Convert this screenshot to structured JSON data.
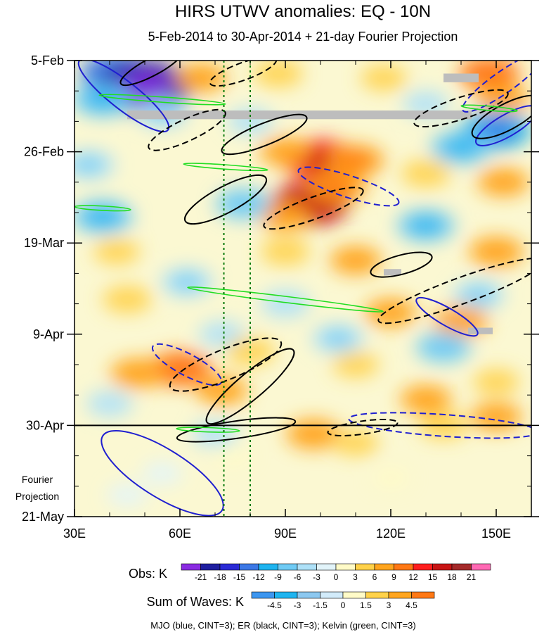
{
  "chart_data": {
    "type": "heatmap",
    "title": "HIRS UTWV anomalies: EQ - 10N",
    "subtitle": "5-Feb-2014 to 30-Apr-2014 + 21-day Fourier Projection",
    "x_axis": {
      "range": [
        30,
        160
      ],
      "units": "longitude (deg E)",
      "ticks": [
        {
          "value": 30,
          "label": "30E"
        },
        {
          "value": 60,
          "label": "60E"
        },
        {
          "value": 90,
          "label": "90E"
        },
        {
          "value": 120,
          "label": "120E"
        },
        {
          "value": 150,
          "label": "150E"
        }
      ],
      "minor_ticks": [
        40,
        50,
        70,
        80,
        100,
        110,
        130,
        140,
        160
      ]
    },
    "y_axis": {
      "range_days": [
        0,
        105
      ],
      "units": "days since 5-Feb-2014 (downward)",
      "ticks": [
        {
          "day": 0,
          "label": "5-Feb"
        },
        {
          "day": 21,
          "label": "26-Feb"
        },
        {
          "day": 42,
          "label": "19-Mar"
        },
        {
          "day": 63,
          "label": "9-Apr"
        },
        {
          "day": 84,
          "label": "30-Apr"
        },
        {
          "day": 105,
          "label": "21-May"
        }
      ],
      "minor_tick_interval_days": 7
    },
    "observation_end_day": 84,
    "projection_label_line1": "Fourier",
    "projection_label_line2": "Projection",
    "reference_longitudes": [
      72.5,
      80
    ],
    "obs_legend": {
      "label": "Obs: K",
      "levels": [
        "-21",
        "-18",
        "-15",
        "-12",
        "-9",
        "-6",
        "-3",
        "0",
        "3",
        "6",
        "9",
        "12",
        "15",
        "18",
        "21"
      ],
      "colors": [
        "#8a2be2",
        "#1e1ea0",
        "#2a2ad6",
        "#3c78e6",
        "#1eb4f0",
        "#6fcbf5",
        "#aee1f8",
        "#e2f4fa",
        "#fffbc8",
        "#ffd24a",
        "#ffa51e",
        "#ff7814",
        "#ff1e1e",
        "#c81414",
        "#a52a2a",
        "#ff69b4"
      ]
    },
    "waves_legend": {
      "label": "Sum of Waves: K",
      "levels": [
        "-4.5",
        "-3",
        "-1.5",
        "0",
        "1.5",
        "3",
        "4.5"
      ],
      "colors": [
        "#3c96f0",
        "#1eb4f0",
        "#8cc8f0",
        "#d2ebfa",
        "#fffbc8",
        "#ffd24a",
        "#ffa51e",
        "#ff7814"
      ]
    },
    "contour_legend": "MJO (blue, CINT=3); ER (black, CINT=3); Kelvin (green, CINT=3)",
    "anomaly_cells": [
      {
        "lon": 42,
        "day": 3,
        "v": -13
      },
      {
        "lon": 50,
        "day": 6,
        "v": -20
      },
      {
        "lon": 38,
        "day": 9,
        "v": -9
      },
      {
        "lon": 55,
        "day": 12,
        "v": -6
      },
      {
        "lon": 148,
        "day": 3,
        "v": 9
      },
      {
        "lon": 152,
        "day": 9,
        "v": 6
      },
      {
        "lon": 66,
        "day": 4,
        "v": 6
      },
      {
        "lon": 88,
        "day": 3,
        "v": 5
      },
      {
        "lon": 118,
        "day": 4,
        "v": 4
      },
      {
        "lon": 130,
        "day": 10,
        "v": -4
      },
      {
        "lon": 150,
        "day": 16,
        "v": -12
      },
      {
        "lon": 140,
        "day": 20,
        "v": -9
      },
      {
        "lon": 100,
        "day": 23,
        "v": 14
      },
      {
        "lon": 110,
        "day": 23,
        "v": 8
      },
      {
        "lon": 90,
        "day": 21,
        "v": 6
      },
      {
        "lon": 97,
        "day": 33,
        "v": 15
      },
      {
        "lon": 105,
        "day": 29,
        "v": 8
      },
      {
        "lon": 90,
        "day": 36,
        "v": 6
      },
      {
        "lon": 80,
        "day": 14,
        "v": -4
      },
      {
        "lon": 78,
        "day": 33,
        "v": -7
      },
      {
        "lon": 34,
        "day": 24,
        "v": -6
      },
      {
        "lon": 38,
        "day": 36,
        "v": -9
      },
      {
        "lon": 130,
        "day": 26,
        "v": 5
      },
      {
        "lon": 152,
        "day": 28,
        "v": 6
      },
      {
        "lon": 130,
        "day": 38,
        "v": -8
      },
      {
        "lon": 150,
        "day": 44,
        "v": 7
      },
      {
        "lon": 42,
        "day": 44,
        "v": 4
      },
      {
        "lon": 90,
        "day": 44,
        "v": 5
      },
      {
        "lon": 110,
        "day": 46,
        "v": 6
      },
      {
        "lon": 62,
        "day": 51,
        "v": -6
      },
      {
        "lon": 90,
        "day": 56,
        "v": -5
      },
      {
        "lon": 45,
        "day": 55,
        "v": 5
      },
      {
        "lon": 120,
        "day": 58,
        "v": 6
      },
      {
        "lon": 145,
        "day": 54,
        "v": -6
      },
      {
        "lon": 140,
        "day": 60,
        "v": 7
      },
      {
        "lon": 135,
        "day": 66,
        "v": -7
      },
      {
        "lon": 105,
        "day": 64,
        "v": -6
      },
      {
        "lon": 72,
        "day": 63,
        "v": -4
      },
      {
        "lon": 60,
        "day": 71,
        "v": 10
      },
      {
        "lon": 48,
        "day": 72,
        "v": 7
      },
      {
        "lon": 72,
        "day": 76,
        "v": 6
      },
      {
        "lon": 80,
        "day": 67,
        "v": 5
      },
      {
        "lon": 110,
        "day": 70,
        "v": 4
      },
      {
        "lon": 130,
        "day": 78,
        "v": 6
      },
      {
        "lon": 150,
        "day": 74,
        "v": 4
      },
      {
        "lon": 40,
        "day": 79,
        "v": -4
      },
      {
        "lon": 98,
        "day": 86,
        "v": 7
      },
      {
        "lon": 110,
        "day": 88,
        "v": 4
      },
      {
        "lon": 135,
        "day": 84,
        "v": 5
      },
      {
        "lon": 150,
        "day": 82,
        "v": 6
      },
      {
        "lon": 55,
        "day": 95,
        "v": -2
      },
      {
        "lon": 45,
        "day": 100,
        "v": -2
      },
      {
        "lon": 75,
        "day": 91,
        "v": 1
      },
      {
        "lon": 120,
        "day": 96,
        "v": 1
      },
      {
        "lon": 70,
        "day": 86,
        "v": -4
      }
    ],
    "missing_data": [
      {
        "lon_start": 45,
        "lon_end": 143,
        "day_start": 11.5,
        "day_end": 13.5
      },
      {
        "lon_start": 135,
        "lon_end": 145,
        "day_start": 3,
        "day_end": 5
      },
      {
        "lon_start": 118,
        "lon_end": 123,
        "day_start": 48,
        "day_end": 49.5
      },
      {
        "lon_start": 142,
        "lon_end": 149,
        "day_start": 61.5,
        "day_end": 63
      }
    ],
    "contours": [
      {
        "wave": "MJO",
        "style": "solid",
        "lon": 44,
        "day": 8,
        "rx": 16,
        "ry": 3.2,
        "rot": 38
      },
      {
        "wave": "MJO",
        "style": "solid",
        "lon": 55,
        "day": 95,
        "rx": 20,
        "ry": 5.5,
        "rot": 32
      },
      {
        "wave": "MJO",
        "style": "dashed",
        "lon": 152,
        "day": 5,
        "rx": 14,
        "ry": 2.5,
        "rot": -35
      },
      {
        "wave": "MJO",
        "style": "dashed",
        "lon": 108,
        "day": 29,
        "rx": 15,
        "ry": 2.5,
        "rot": 18
      },
      {
        "wave": "MJO",
        "style": "dashed",
        "lon": 62,
        "day": 70,
        "rx": 11,
        "ry": 2.5,
        "rot": 28
      },
      {
        "wave": "MJO",
        "style": "dashed",
        "lon": 135,
        "day": 84,
        "rx": 27,
        "ry": 2.5,
        "rot": 4
      },
      {
        "wave": "MJO",
        "style": "solid",
        "lon": 136,
        "day": 59,
        "rx": 10,
        "ry": 2,
        "rot": 30
      },
      {
        "wave": "MJO",
        "style": "solid",
        "lon": 153,
        "day": 15,
        "rx": 10,
        "ry": 2.5,
        "rot": -30
      },
      {
        "wave": "ER",
        "style": "solid",
        "lon": 52,
        "day": 1.5,
        "rx": 10,
        "ry": 2,
        "rot": -28
      },
      {
        "wave": "ER",
        "style": "dashed",
        "lon": 78,
        "day": 2.5,
        "rx": 10,
        "ry": 2,
        "rot": -20
      },
      {
        "wave": "ER",
        "style": "dashed",
        "lon": 62,
        "day": 16,
        "rx": 12,
        "ry": 2.5,
        "rot": -25
      },
      {
        "wave": "ER",
        "style": "solid",
        "lon": 84,
        "day": 17,
        "rx": 13,
        "ry": 2.5,
        "rot": -22
      },
      {
        "wave": "ER",
        "style": "dashed",
        "lon": 140,
        "day": 11,
        "rx": 14,
        "ry": 2.5,
        "rot": -18
      },
      {
        "wave": "ER",
        "style": "solid",
        "lon": 73,
        "day": 32,
        "rx": 13,
        "ry": 3,
        "rot": -28
      },
      {
        "wave": "ER",
        "style": "dashed",
        "lon": 98,
        "day": 34,
        "rx": 15,
        "ry": 2.5,
        "rot": -20
      },
      {
        "wave": "ER",
        "style": "solid",
        "lon": 123,
        "day": 47,
        "rx": 9,
        "ry": 2.2,
        "rot": -15
      },
      {
        "wave": "ER",
        "style": "dashed",
        "lon": 140,
        "day": 53,
        "rx": 25,
        "ry": 3,
        "rot": -20
      },
      {
        "wave": "ER",
        "style": "dashed",
        "lon": 73,
        "day": 70,
        "rx": 17,
        "ry": 3.5,
        "rot": -22
      },
      {
        "wave": "ER",
        "style": "solid",
        "lon": 80,
        "day": 75,
        "rx": 16,
        "ry": 3,
        "rot": -40
      },
      {
        "wave": "ER",
        "style": "solid",
        "lon": 76,
        "day": 85,
        "rx": 17,
        "ry": 2,
        "rot": -8
      },
      {
        "wave": "ER",
        "style": "solid",
        "lon": 153,
        "day": 13,
        "rx": 11,
        "ry": 3,
        "rot": -28
      },
      {
        "wave": "ER",
        "style": "dashed",
        "lon": 112,
        "day": 84.5,
        "rx": 10,
        "ry": 1.5,
        "rot": -8
      },
      {
        "wave": "Kelvin",
        "style": "solid",
        "lon": 55,
        "day": 9,
        "rx": 18,
        "ry": 0.6,
        "rot": 4
      },
      {
        "wave": "Kelvin",
        "style": "solid",
        "lon": 73,
        "day": 24.5,
        "rx": 12,
        "ry": 0.5,
        "rot": 4
      },
      {
        "wave": "Kelvin",
        "style": "solid",
        "lon": 38,
        "day": 34,
        "rx": 8,
        "ry": 0.5,
        "rot": 3
      },
      {
        "wave": "Kelvin",
        "style": "solid",
        "lon": 90,
        "day": 55,
        "rx": 28,
        "ry": 0.7,
        "rot": 7
      },
      {
        "wave": "Kelvin",
        "style": "solid",
        "lon": 148,
        "day": 11,
        "rx": 8,
        "ry": 0.5,
        "rot": 5
      },
      {
        "wave": "Kelvin",
        "style": "solid",
        "lon": 68,
        "day": 85,
        "rx": 9,
        "ry": 0.5,
        "rot": 2
      }
    ]
  }
}
